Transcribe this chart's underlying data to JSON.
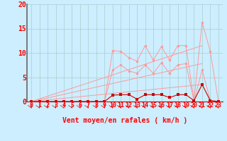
{
  "title": "",
  "xlabel": "Vent moyen/en rafales ( km/h )",
  "background_color": "#cceeff",
  "grid_color": "#aacccc",
  "x": [
    0,
    1,
    2,
    3,
    4,
    5,
    6,
    7,
    8,
    9,
    10,
    11,
    12,
    13,
    14,
    15,
    16,
    17,
    18,
    19,
    20,
    21,
    22,
    23
  ],
  "line1_y": [
    0,
    0,
    0,
    0,
    0,
    0,
    0,
    0,
    0,
    0,
    10.5,
    10.3,
    9.0,
    8.3,
    11.5,
    8.5,
    11.3,
    8.5,
    11.5,
    11.5,
    0.2,
    16.3,
    10.3,
    0
  ],
  "line2_y": [
    0,
    0,
    0,
    0,
    0,
    0,
    0,
    0,
    0,
    0,
    6.5,
    7.5,
    6.3,
    5.8,
    7.5,
    5.8,
    8.0,
    5.8,
    7.5,
    7.8,
    0.1,
    6.5,
    0.3,
    0
  ],
  "line3_y": [
    0,
    0,
    0,
    0,
    0,
    0,
    0,
    0,
    0,
    0,
    1.3,
    1.4,
    1.4,
    0.5,
    1.4,
    1.4,
    1.4,
    0.8,
    1.4,
    1.4,
    0.2,
    3.5,
    0.2,
    0
  ],
  "line_light_color": "#ff9999",
  "line_dark_color": "#cc0000",
  "trend1_end": 11.5,
  "trend2_end": 7.8,
  "trend3_end": 3.5,
  "ylim": [
    0,
    20
  ],
  "xlim": [
    -0.5,
    23.5
  ],
  "tick_fontsize": 6,
  "label_fontsize": 7
}
